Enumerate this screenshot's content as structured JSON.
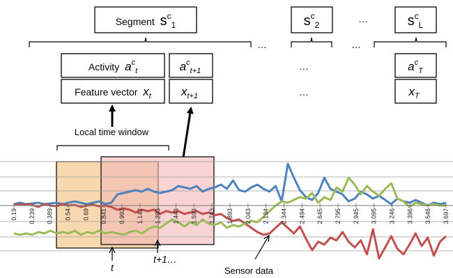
{
  "segments": {
    "first": {
      "word": "Segment",
      "base": "s",
      "sup": "c",
      "sub": "1"
    },
    "second": {
      "base": "s",
      "sup": "c",
      "sub": "2"
    },
    "last": {
      "base": "s",
      "sup": "c",
      "sub": "L"
    },
    "ellipsis": "…"
  },
  "rows": {
    "activity": {
      "word": "Activity",
      "base": "a",
      "sup": "c",
      "sub": "t"
    },
    "activity_next": {
      "base": "a",
      "sup": "c",
      "sub": "t+1"
    },
    "activity_last": {
      "base": "a",
      "sup": "c",
      "sub": "T"
    },
    "feature": {
      "word": "Feature vector",
      "base": "x",
      "sub": "t"
    },
    "feature_next": {
      "base": "x",
      "sub": "t+1"
    },
    "feature_last": {
      "base": "x",
      "sub": "T"
    },
    "ellipsis": "…"
  },
  "labels": {
    "local_time_window": "Local time window",
    "t": "t",
    "t_plus_1": "t+1…",
    "sensor_data": "Sensor data"
  },
  "colors": {
    "blue": "#4f81bd",
    "red": "#c0504d",
    "green": "#9bbb59",
    "window_t": "#f3c07a",
    "window_t1": "#f4b8b8"
  },
  "chart_data": {
    "type": "line",
    "title": "",
    "xlabel": "",
    "ylabel": "",
    "x_tick_labels": [
      "0.19",
      "0.239",
      "0.389",
      "0.54",
      "0.69",
      "0.841",
      "0.992",
      "1.142",
      "1.293",
      "1.443",
      "1.593",
      "1.743",
      "1.893",
      "2.043",
      "2.194",
      "2.344",
      "2.494",
      "2.645",
      "2.795",
      "2.945",
      "3.095",
      "3.246",
      "3.396",
      "3.546",
      "3.697"
    ],
    "series": [
      {
        "color": "#4f81bd",
        "values": [
          0.1,
          0.2,
          0.1,
          0.15,
          0.2,
          0.1,
          0.15,
          0.2,
          0.1,
          0.2,
          0.3,
          0.2,
          0.1,
          0.2,
          0.3,
          0.1,
          0.2,
          0.8,
          0.9,
          1.0,
          1.1,
          1.0,
          1.2,
          1.0,
          0.9,
          1.0,
          1.1,
          1.4,
          1.3,
          1.2,
          1.4,
          1.0,
          1.2,
          1.3,
          1.5,
          1.2,
          1.8,
          1.1,
          1.0,
          1.3,
          1.5,
          1.2,
          1.0,
          1.4,
          0.3,
          3.0,
          2.0,
          1.1,
          0.6,
          0.4,
          0.9,
          2.0,
          1.2,
          1.0,
          0.8,
          0.3,
          0.5,
          1.0,
          0.8,
          0.5,
          0.7,
          0.4,
          0.1,
          0.5,
          0.3,
          0.2,
          0.4,
          0.2,
          0.0,
          0.2,
          0.1,
          0.2
        ]
      },
      {
        "color": "#c0504d",
        "values": [
          0.1,
          0.05,
          0.1,
          0.05,
          -0.1,
          0.1,
          0.0,
          -0.05,
          0.1,
          0.0,
          0.05,
          -0.1,
          0.0,
          0.05,
          -0.05,
          0.0,
          -0.1,
          -0.3,
          -0.2,
          -0.3,
          -0.5,
          -0.3,
          -0.4,
          -0.3,
          -0.6,
          -0.4,
          -0.5,
          -0.4,
          -0.6,
          -0.5,
          -0.4,
          -0.6,
          -0.5,
          -0.7,
          -0.6,
          -0.9,
          -1.1,
          -1.0,
          -1.3,
          -1.6,
          -1.9,
          -2.1,
          -2.0,
          -1.6,
          -1.2,
          -1.6,
          -2.0,
          -1.5,
          -2.4,
          -3.2,
          -2.6,
          -2.8,
          -2.3,
          -2.5,
          -1.9,
          -2.6,
          -3.0,
          -2.5,
          -3.5,
          -1.7,
          -3.8,
          -3.0,
          -2.2,
          -3.1,
          -3.5,
          -2.8,
          -2.0,
          -2.9,
          -2.3,
          -3.6,
          -2.6,
          -2.2
        ]
      },
      {
        "color": "#9bbb59",
        "values": [
          -2.0,
          -2.1,
          -2.0,
          -2.1,
          -1.9,
          -2.0,
          -1.8,
          -2.0,
          -1.9,
          -2.0,
          -1.8,
          -2.1,
          -1.9,
          -2.0,
          -1.8,
          -2.0,
          -1.9,
          -2.0,
          -2.1,
          -1.9,
          -1.8,
          -2.0,
          -1.7,
          -1.5,
          -1.6,
          -1.3,
          -1.0,
          -1.2,
          -1.5,
          -1.2,
          -1.4,
          -1.0,
          -1.3,
          -1.4,
          -1.2,
          -1.6,
          -1.4,
          -1.5,
          -1.3,
          -1.1,
          -1.2,
          -0.8,
          -0.4,
          0.0,
          0.3,
          0.2,
          0.4,
          0.6,
          0.5,
          0.9,
          0.2,
          0.6,
          0.4,
          1.3,
          1.0,
          2.0,
          1.5,
          0.8,
          1.4,
          1.0,
          0.7,
          1.2,
          1.6,
          0.5,
          0.3,
          -0.1,
          0.2,
          0.1,
          0.0,
          0.1,
          0.0,
          0.0
        ]
      }
    ]
  }
}
